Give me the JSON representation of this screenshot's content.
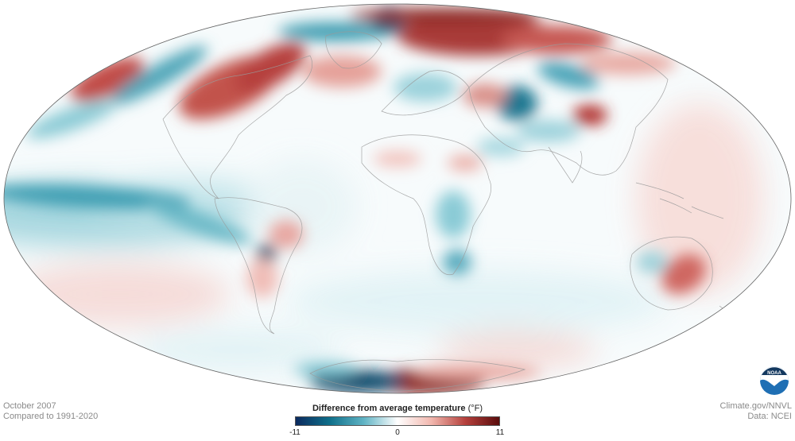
{
  "caption": {
    "date": "October 2007",
    "baseline": "Compared to 1991-2020"
  },
  "credits": {
    "source": "Climate.gov/NNVL",
    "data": "Data: NCEI"
  },
  "legend": {
    "title": "Difference from average temperature",
    "unit": "(°F)",
    "min_label": "-11",
    "mid_label": "0",
    "max_label": "11",
    "min_value": -11,
    "max_value": 11,
    "colors": [
      "#0b2a5e",
      "#0e6f8a",
      "#5fb3c4",
      "#ffffff",
      "#f2b7ae",
      "#b5403c",
      "#5a0c0c"
    ]
  },
  "logo": {
    "name": "noaa-logo",
    "text": "NOAA"
  },
  "anomaly_regions": [
    {
      "region": "Arctic / Barents Sea",
      "sign": "warm",
      "strength": 0.9
    },
    {
      "region": "Canada / Baffin Bay",
      "sign": "warm",
      "strength": 0.75
    },
    {
      "region": "Alaska",
      "sign": "warm",
      "strength": 0.6
    },
    {
      "region": "Northern Siberia",
      "sign": "warm",
      "strength": 0.8
    },
    {
      "region": "Central Asia (Tibet)",
      "sign": "warm",
      "strength": 0.75
    },
    {
      "region": "Western Asia",
      "sign": "cold",
      "strength": 0.85
    },
    {
      "region": "Eastern Pacific tropics (La Nina)",
      "sign": "cold",
      "strength": 0.6
    },
    {
      "region": "Central South America",
      "sign": "cold",
      "strength": 1.0
    },
    {
      "region": "Southern Africa",
      "sign": "cold",
      "strength": 0.55
    },
    {
      "region": "Eastern Australia",
      "sign": "warm",
      "strength": 0.6
    },
    {
      "region": "East Antarctica",
      "sign": "warm",
      "strength": 0.9
    },
    {
      "region": "West Antarctica",
      "sign": "cold",
      "strength": 0.9
    }
  ]
}
